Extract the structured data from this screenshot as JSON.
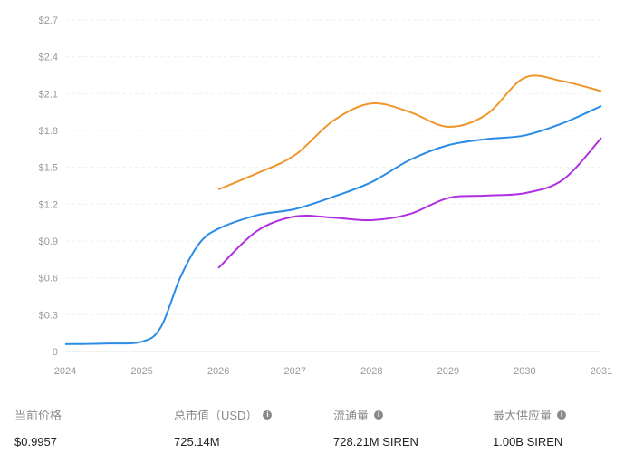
{
  "chart_data": {
    "type": "line",
    "ylim": [
      0,
      2.7
    ],
    "yticks": [
      0,
      0.3,
      0.6,
      0.9,
      1.2,
      1.5,
      1.8,
      2.1,
      2.4,
      2.7
    ],
    "ytick_labels": [
      "0",
      "$0.3",
      "$0.6",
      "$0.9",
      "$1.2",
      "$1.5",
      "$1.8",
      "$2.1",
      "$2.4",
      "$2.7"
    ],
    "xlim": [
      2024,
      2031
    ],
    "xticks": [
      "2024",
      "2025",
      "2026",
      "2027",
      "2028",
      "2029",
      "2030",
      "2031"
    ],
    "grid": true,
    "series": [
      {
        "color": "#2b8ce6",
        "x": [
          2024,
          2024.5,
          2025,
          2025.25,
          2025.5,
          2025.75,
          2026,
          2026.5,
          2027,
          2027.5,
          2028,
          2028.5,
          2029,
          2029.5,
          2030,
          2030.5,
          2031
        ],
        "values": [
          0.06,
          0.065,
          0.08,
          0.2,
          0.6,
          0.88,
          1.0,
          1.11,
          1.16,
          1.26,
          1.38,
          1.56,
          1.68,
          1.73,
          1.76,
          1.86,
          2.0
        ]
      },
      {
        "color": "#f0962a",
        "x": [
          2026,
          2026.5,
          2027,
          2027.5,
          2028,
          2028.5,
          2029,
          2029.5,
          2030,
          2030.5,
          2031
        ],
        "values": [
          1.32,
          1.45,
          1.6,
          1.88,
          2.02,
          1.95,
          1.83,
          1.93,
          2.23,
          2.2,
          2.12
        ]
      },
      {
        "color": "#b02ee0",
        "x": [
          2026,
          2026.5,
          2027,
          2027.5,
          2028,
          2028.5,
          2029,
          2029.5,
          2030,
          2030.5,
          2031
        ],
        "values": [
          0.68,
          0.98,
          1.1,
          1.09,
          1.07,
          1.12,
          1.25,
          1.27,
          1.29,
          1.4,
          1.74
        ]
      }
    ]
  },
  "stats": [
    {
      "label": "当前价格",
      "value": "$0.9957",
      "info": false
    },
    {
      "label": "总市值（USD）",
      "value": "725.14M",
      "info": true
    },
    {
      "label": "流通量",
      "value": "728.21M SIREN",
      "info": true
    },
    {
      "label": "最大供应量",
      "value": "1.00B SIREN",
      "info": true
    }
  ]
}
